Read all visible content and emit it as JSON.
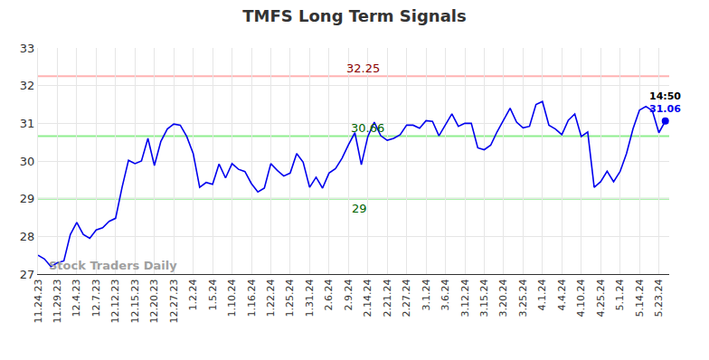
{
  "chart_data": {
    "type": "line",
    "title": "TMFS Long Term Signals",
    "categories": [
      "11.24.23",
      null,
      null,
      "11.29.23",
      null,
      null,
      "12.4.23",
      null,
      null,
      "12.7.23",
      null,
      null,
      "12.12.23",
      null,
      null,
      "12.15.23",
      null,
      null,
      "12.20.23",
      null,
      null,
      "12.27.23",
      null,
      null,
      "1.2.24",
      null,
      null,
      "1.5.24",
      null,
      null,
      "1.10.24",
      null,
      null,
      "1.16.24",
      null,
      null,
      "1.22.24",
      null,
      null,
      "1.25.24",
      null,
      null,
      "1.31.24",
      null,
      null,
      "2.6.24",
      null,
      null,
      "2.9.24",
      null,
      null,
      "2.14.24",
      null,
      null,
      "2.21.24",
      null,
      null,
      "2.27.24",
      null,
      null,
      "3.1.24",
      null,
      null,
      "3.6.24",
      null,
      null,
      "3.12.24",
      null,
      null,
      "3.15.24",
      null,
      null,
      "3.20.24",
      null,
      null,
      "3.25.24",
      null,
      null,
      "4.1.24",
      null,
      null,
      "4.4.24",
      null,
      null,
      "4.10.24",
      null,
      null,
      "4.25.24",
      null,
      null,
      "5.1.24",
      null,
      null,
      "5.14.24",
      null,
      null,
      "5.23.24",
      null
    ],
    "values": [
      27.5,
      27.4,
      27.2,
      27.3,
      27.35,
      28.05,
      28.37,
      28.05,
      27.95,
      28.17,
      28.23,
      28.4,
      28.48,
      29.3,
      30.02,
      29.93,
      30.0,
      30.6,
      29.88,
      30.52,
      30.85,
      30.98,
      30.95,
      30.65,
      30.2,
      29.3,
      29.43,
      29.38,
      29.92,
      29.55,
      29.93,
      29.78,
      29.72,
      29.4,
      29.18,
      29.28,
      29.93,
      29.75,
      29.6,
      29.68,
      30.2,
      29.97,
      29.3,
      29.57,
      29.28,
      29.68,
      29.8,
      30.07,
      30.43,
      30.75,
      29.9,
      30.65,
      31.03,
      30.67,
      30.55,
      30.6,
      30.7,
      30.95,
      30.95,
      30.87,
      31.07,
      31.05,
      30.67,
      30.95,
      31.25,
      30.92,
      31.0,
      31.0,
      30.35,
      30.3,
      30.42,
      30.78,
      31.08,
      31.4,
      31.03,
      30.88,
      30.92,
      31.5,
      31.58,
      30.95,
      30.85,
      30.7,
      31.08,
      31.25,
      30.65,
      30.77,
      29.3,
      29.45,
      29.73,
      29.45,
      29.72,
      30.2,
      30.85,
      31.35,
      31.45,
      31.33,
      30.75,
      31.06
    ],
    "color": "#0000ee",
    "ylim": [
      27,
      33
    ],
    "yticks": [
      27,
      28,
      29,
      30,
      31,
      32,
      33
    ],
    "grid": true,
    "reference_lines": [
      {
        "value": 32.25,
        "label": "32.25",
        "color": "#ffb3b3"
      },
      {
        "value": 30.66,
        "label": "30.66",
        "color": "#90ee90"
      },
      {
        "value": 29,
        "label": "29",
        "color": "#90ee90"
      }
    ],
    "last_point": {
      "time": "14:50",
      "value_label": "31.06"
    },
    "watermark": "Stock Traders Daily"
  }
}
